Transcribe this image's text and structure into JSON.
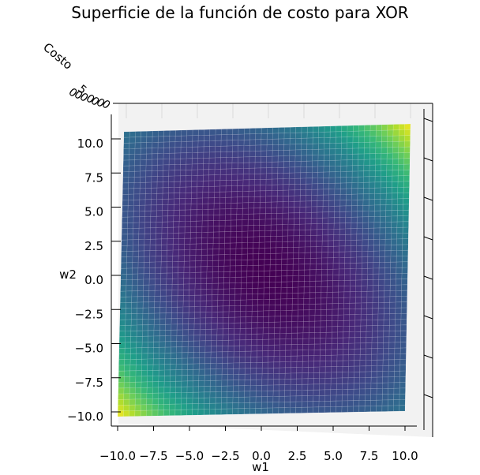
{
  "chart_data": {
    "type": "surface",
    "title": "Superficie de la función de costo para XOR",
    "xlabel": "w1",
    "ylabel": "w2",
    "zlabel": "Costo",
    "xlim": [
      -10.0,
      10.0
    ],
    "ylim": [
      -10.0,
      10.0
    ],
    "xticks": [
      "−10.0",
      "−7.5",
      "−5.0",
      "−2.5",
      "0.0",
      "2.5",
      "5.0",
      "7.5",
      "10.0"
    ],
    "yticks": [
      "10.0",
      "7.5",
      "5.0",
      "2.5",
      "0.0",
      "−2.5",
      "−5.0",
      "−7.5",
      "−10.0"
    ],
    "colormap": "viridis",
    "view": "top-down",
    "surface": {
      "function": "quadratic bowl with minimum near (0, 0) and elongated along the w1 = -w2 diagonal",
      "minimum": {
        "w1": 0.0,
        "w2": 0.0
      },
      "highest_corners": [
        {
          "w1": 10.0,
          "w2": 10.0
        },
        {
          "w1": -10.0,
          "w2": -10.0
        }
      ]
    }
  }
}
